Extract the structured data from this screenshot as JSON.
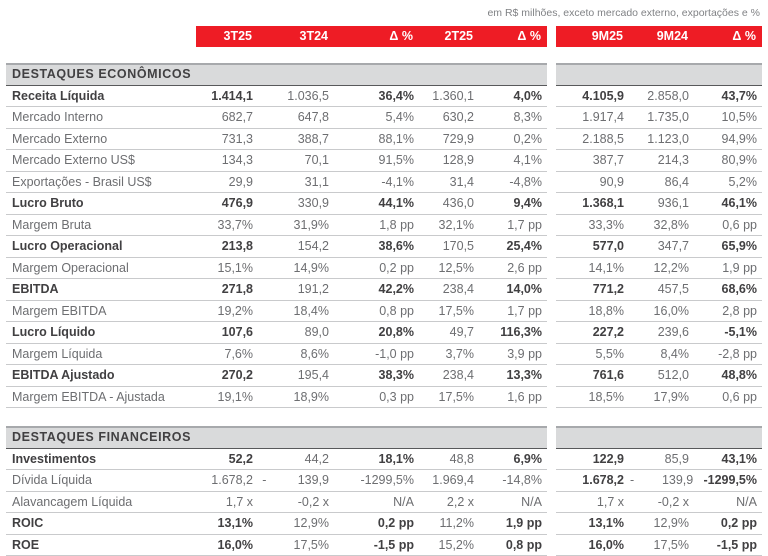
{
  "note": "em R$ milhões, exceto mercado externo, exportações e %",
  "colors": {
    "accent_red": "#EE1C25",
    "section_bg": "#D9DADB",
    "text_strong": "#414042",
    "text_regular": "#6D6E71"
  },
  "header": {
    "cols": [
      "3T25",
      "3T24",
      "Δ %",
      "2T25",
      "Δ %",
      "9M25",
      "9M24",
      "Δ %"
    ]
  },
  "sections": [
    {
      "title": "DESTAQUES ECONÔMICOS",
      "rows": [
        {
          "label": "Receita Líquida",
          "bold_label": true,
          "bold_cells": [
            0,
            2,
            4,
            5,
            7
          ],
          "cells": [
            "1.414,1",
            "1.036,5",
            "36,4%",
            "1.360,1",
            "4,0%",
            "4.105,9",
            "2.858,0",
            "43,7%"
          ]
        },
        {
          "label": "Mercado Interno",
          "bold_label": false,
          "bold_cells": [],
          "cells": [
            "682,7",
            "647,8",
            "5,4%",
            "630,2",
            "8,3%",
            "1.917,4",
            "1.735,0",
            "10,5%"
          ]
        },
        {
          "label": "Mercado Externo",
          "bold_label": false,
          "bold_cells": [],
          "cells": [
            "731,3",
            "388,7",
            "88,1%",
            "729,9",
            "0,2%",
            "2.188,5",
            "1.123,0",
            "94,9%"
          ]
        },
        {
          "label": "Mercado Externo US$",
          "bold_label": false,
          "bold_cells": [],
          "cells": [
            "134,3",
            "70,1",
            "91,5%",
            "128,9",
            "4,1%",
            "387,7",
            "214,3",
            "80,9%"
          ]
        },
        {
          "label": "Exportações - Brasil US$",
          "bold_label": false,
          "bold_cells": [],
          "cells": [
            "29,9",
            "31,1",
            "-4,1%",
            "31,4",
            "-4,8%",
            "90,9",
            "86,4",
            "5,2%"
          ]
        },
        {
          "label": "Lucro Bruto",
          "bold_label": true,
          "bold_cells": [
            0,
            2,
            4,
            5,
            7
          ],
          "cells": [
            "476,9",
            "330,9",
            "44,1%",
            "436,0",
            "9,4%",
            "1.368,1",
            "936,1",
            "46,1%"
          ]
        },
        {
          "label": "Margem Bruta",
          "bold_label": false,
          "bold_cells": [],
          "cells": [
            "33,7%",
            "31,9%",
            "1,8 pp",
            "32,1%",
            "1,7 pp",
            "33,3%",
            "32,8%",
            "0,6 pp"
          ]
        },
        {
          "label": "Lucro Operacional",
          "bold_label": true,
          "bold_cells": [
            0,
            2,
            4,
            5,
            7
          ],
          "cells": [
            "213,8",
            "154,2",
            "38,6%",
            "170,5",
            "25,4%",
            "577,0",
            "347,7",
            "65,9%"
          ]
        },
        {
          "label": "Margem Operacional",
          "bold_label": false,
          "bold_cells": [],
          "cells": [
            "15,1%",
            "14,9%",
            "0,2 pp",
            "12,5%",
            "2,6 pp",
            "14,1%",
            "12,2%",
            "1,9 pp"
          ]
        },
        {
          "label": "EBITDA",
          "bold_label": true,
          "bold_cells": [
            0,
            2,
            4,
            5,
            7
          ],
          "cells": [
            "271,8",
            "191,2",
            "42,2%",
            "238,4",
            "14,0%",
            "771,2",
            "457,5",
            "68,6%"
          ]
        },
        {
          "label": "Margem EBITDA",
          "bold_label": false,
          "bold_cells": [],
          "cells": [
            "19,2%",
            "18,4%",
            "0,8 pp",
            "17,5%",
            "1,7 pp",
            "18,8%",
            "16,0%",
            "2,8 pp"
          ]
        },
        {
          "label": "Lucro Líquido",
          "bold_label": true,
          "bold_cells": [
            0,
            2,
            4,
            5,
            7
          ],
          "cells": [
            "107,6",
            "89,0",
            "20,8%",
            "49,7",
            "116,3%",
            "227,2",
            "239,6",
            "-5,1%"
          ]
        },
        {
          "label": "Margem Líquida",
          "bold_label": false,
          "bold_cells": [],
          "cells": [
            "7,6%",
            "8,6%",
            "-1,0 pp",
            "3,7%",
            "3,9 pp",
            "5,5%",
            "8,4%",
            "-2,8 pp"
          ]
        },
        {
          "label": "EBITDA Ajustado",
          "bold_label": true,
          "bold_cells": [
            0,
            2,
            4,
            5,
            7
          ],
          "cells": [
            "270,2",
            "195,4",
            "38,3%",
            "238,4",
            "13,3%",
            "761,6",
            "512,0",
            "48,8%"
          ]
        },
        {
          "label": "Margem EBITDA - Ajustada",
          "bold_label": false,
          "bold_cells": [],
          "cells": [
            "19,1%",
            "18,9%",
            "0,3 pp",
            "17,5%",
            "1,6 pp",
            "18,5%",
            "17,9%",
            "0,6 pp"
          ]
        }
      ]
    },
    {
      "title": "DESTAQUES FINANCEIROS",
      "rows": [
        {
          "label": "Investimentos",
          "bold_label": true,
          "bold_cells": [
            0,
            2,
            4,
            5,
            7
          ],
          "cells": [
            "52,2",
            "44,2",
            "18,1%",
            "48,8",
            "6,9%",
            "122,9",
            "85,9",
            "43,1%"
          ]
        },
        {
          "label": "Dívida Líquida",
          "bold_label": false,
          "bold_cells": [
            5,
            7
          ],
          "cells": [
            "1.678,2",
            "-         139,9",
            "-1299,5%",
            "1.969,4",
            "-14,8%",
            "1.678,2",
            "-        139,9",
            "-1299,5%"
          ]
        },
        {
          "label": "Alavancagem Líquida",
          "bold_label": false,
          "bold_cells": [],
          "cells": [
            "1,7 x",
            "-0,2 x",
            "N/A",
            "2,2 x",
            "N/A",
            "1,7 x",
            "-0,2 x",
            "N/A"
          ]
        },
        {
          "label": "ROIC",
          "bold_label": true,
          "bold_cells": [
            0,
            2,
            4,
            5,
            7
          ],
          "cells": [
            "13,1%",
            "12,9%",
            "0,2 pp",
            "11,2%",
            "1,9 pp",
            "13,1%",
            "12,9%",
            "0,2 pp"
          ]
        },
        {
          "label": "ROE",
          "bold_label": true,
          "bold_cells": [
            0,
            2,
            4,
            5,
            7
          ],
          "cells": [
            "16,0%",
            "17,5%",
            "-1,5 pp",
            "15,2%",
            "0,8 pp",
            "16,0%",
            "17,5%",
            "-1,5 pp"
          ]
        }
      ]
    }
  ]
}
